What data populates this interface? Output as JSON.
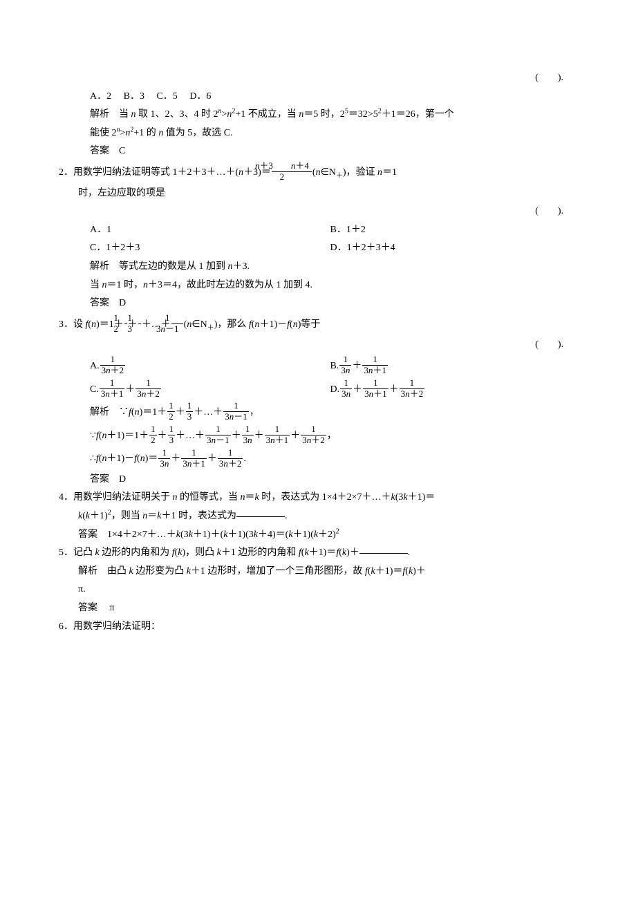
{
  "paren_blank": "(　　).",
  "q1": {
    "optA": "A．2",
    "optB": "B．3",
    "optC": "C．5",
    "optD": "D．6",
    "jiexi_label": "解析",
    "jiexi_prefix": "当",
    "jiexi_n": "n",
    "jiexi_t1": "取 1、2、3、4 时 2",
    "jiexi_sup_n": "n",
    "jiexi_gt": ">",
    "jiexi_n2": "n",
    "jiexi_t2": "+1 不成立，当",
    "jiexi_n3": "n",
    "jiexi_t3": "＝5 时，2",
    "jiexi_sup5": "5",
    "jiexi_t4": "＝32>5",
    "jiexi_sup2": "2",
    "jiexi_t5": "＋1＝26，第一个",
    "jiexi_line2a": "能使 2",
    "jiexi_line2b": ">",
    "jiexi_line2c": "+1 的",
    "jiexi_line2d": "值为 5，故选 C.",
    "ans_label": "答案",
    "ans": "C"
  },
  "q2": {
    "num": "2．",
    "stem_a": "用数学归纳法证明等式 1＋2＋3＋…＋(",
    "n1": "n",
    "stem_b": "＋3)＝",
    "frac_num_a": "n",
    "frac_num_b": "＋3",
    "frac_num_sp": "　　",
    "frac_num_c": "n",
    "frac_num_d": "＋4",
    "frac_den": "2",
    "stem_c": "(",
    "n2": "n",
    "stem_d": "∈N",
    "sub_plus": "＋",
    "stem_e": ")，验证",
    "n3": "n",
    "stem_f": "＝1",
    "stem_line2": "时，左边应取的项是",
    "optA": "A．1",
    "optB": "B．1＋2",
    "optC": "C．1＋2＋3",
    "optD": "D．1＋2＋3＋4",
    "jiexi_label": "解析",
    "jiexi_a": "等式左边的数是从 1 加到",
    "jiexi_n": "n",
    "jiexi_b": "＋3.",
    "jiexi2_a": "当",
    "jiexi2_n": "n",
    "jiexi2_b": "＝1 时，",
    "jiexi2_n2": "n",
    "jiexi2_c": "＋3＝4，故此时左边的数为从 1 加到 4.",
    "ans_label": "答案",
    "ans": "D"
  },
  "q3": {
    "num": "3．",
    "stem_a": "设",
    "f": "f",
    "stem_b": "(",
    "n": "n",
    "stem_c": ")＝1＋",
    "f_half_num": "1",
    "f_half_den": "2",
    "plus": "＋",
    "f_third_num": "1",
    "f_third_den": "3",
    "dots": "＋…＋",
    "f_last_num": "1",
    "f_last_den_a": "3",
    "f_last_den_n": "n",
    "f_last_den_b": "－1",
    "stem_d": "(",
    "stem_e": "∈N",
    "sub_plus": "＋",
    "stem_f": ")，那么",
    "stem_g": "(",
    "stem_h": "＋1)－",
    "stem_i": "(",
    "stem_j": ")等于",
    "optA_label": "A.",
    "optA_num": "1",
    "optA_den_a": "3",
    "optA_den_n": "n",
    "optA_den_b": "＋2",
    "optB_label": "B.",
    "optB1_num": "1",
    "optB1_den_a": "3",
    "optB1_den_n": "n",
    "optB2_num": "1",
    "optB2_den_a": "3",
    "optB2_den_n": "n",
    "optB2_den_b": "＋1",
    "optC_label": "C.",
    "optC1_num": "1",
    "optC1_den_a": "3",
    "optC1_den_n": "n",
    "optC1_den_b": "＋1",
    "optC2_num": "1",
    "optC2_den_a": "3",
    "optC2_den_n": "n",
    "optC2_den_b": "＋2",
    "optD_label": "D.",
    "optD1_num": "1",
    "optD1_den_a": "3",
    "optD1_den_n": "n",
    "optD2_num": "1",
    "optD2_den_a": "3",
    "optD2_den_n": "n",
    "optD2_den_b": "＋1",
    "optD3_num": "1",
    "optD3_den_a": "3",
    "optD3_den_n": "n",
    "optD3_den_b": "＋2",
    "jiexi_label": "解析",
    "because": "∵",
    "therefore": "∴",
    "jiexi_eq1_a": "(",
    "jiexi_eq1_b": ")＝1＋",
    "comma": "，",
    "jiexi_eq2_a": "(",
    "jiexi_eq2_b": "＋1)＝1＋",
    "jiexi_eq3_a": "(",
    "jiexi_eq3_b": "＋1)－",
    "jiexi_eq3_c": "(",
    "jiexi_eq3_d": ")＝",
    "period": ".",
    "ans_label": "答案",
    "ans": "D"
  },
  "q4": {
    "num": "4．",
    "stem_a": "用数学归纳法证明关于",
    "n": "n",
    "stem_b": "的恒等式，当",
    "stem_c": "＝",
    "k": "k",
    "stem_d": "时，表达式为 1×4＋2×7＋…＋",
    "stem_e": "(3",
    "stem_f": "＋1)＝",
    "line2_a": "(",
    "line2_b": "＋1)",
    "sup2": "2",
    "line2_c": "，则当",
    "line2_d": "＝",
    "line2_e": "＋1 时，表达式为",
    "ans_label": "答案",
    "ans_a": "1×4＋2×7＋…＋",
    "ans_b": "(3",
    "ans_c": "＋1)＋(",
    "ans_d": "＋1)(3",
    "ans_e": "＋4)＝(",
    "ans_f": "＋1)(",
    "ans_g": "＋2)",
    "period": "."
  },
  "q5": {
    "num": "5．",
    "stem_a": "记凸",
    "k": "k",
    "stem_b": "边形的内角和为",
    "f": "f",
    "stem_c": "(",
    "stem_d": ")，则凸",
    "stem_e": "＋1 边形的内角和",
    "stem_f": "(",
    "stem_g": "＋1)＝",
    "stem_h": "(",
    "stem_i": ")＋",
    "period": ".",
    "jiexi_label": "解析",
    "jiexi_a": "由凸",
    "jiexi_b": "边形变为凸",
    "jiexi_c": "＋1 边形时，增加了一个三角形图形，故",
    "jiexi_d": "(",
    "jiexi_e": "＋1)＝",
    "jiexi_f": "(",
    "jiexi_g": ")＋",
    "jiexi_pi": "π.",
    "ans_label": "答案",
    "ans": "π"
  },
  "q6": {
    "num": "6．",
    "stem": "用数学归纳法证明："
  }
}
